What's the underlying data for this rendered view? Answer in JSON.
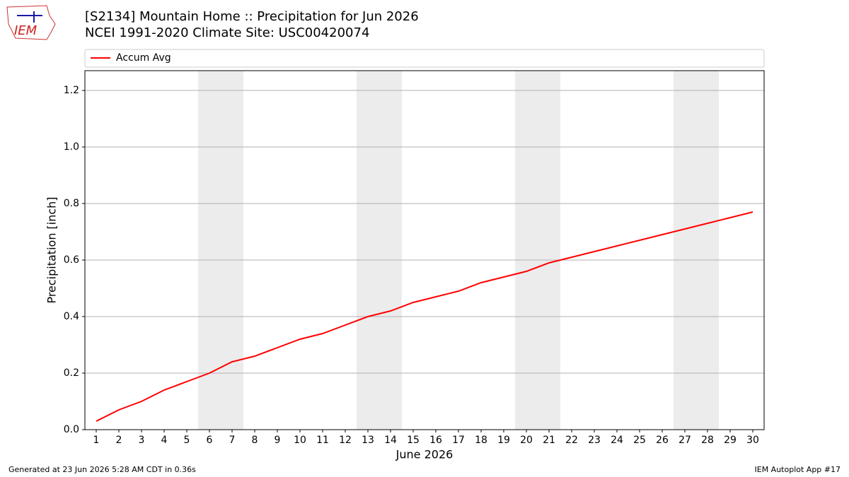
{
  "logo": "IEM",
  "chart_data": {
    "type": "line",
    "title": "[S2134] Mountain Home :: Precipitation for Jun 2026",
    "subtitle": "NCEI 1991-2020 Climate Site: USC00420074",
    "x_label": "June 2026",
    "y_label": "Precipitation [inch]",
    "x": [
      1,
      2,
      3,
      4,
      5,
      6,
      7,
      8,
      9,
      10,
      11,
      12,
      13,
      14,
      15,
      16,
      17,
      18,
      19,
      20,
      21,
      22,
      23,
      24,
      25,
      26,
      27,
      28,
      29,
      30
    ],
    "series": [
      {
        "name": "Accum Avg",
        "color": "#ff0000",
        "values": [
          0.03,
          0.07,
          0.1,
          0.14,
          0.17,
          0.2,
          0.24,
          0.26,
          0.29,
          0.32,
          0.34,
          0.37,
          0.4,
          0.42,
          0.45,
          0.47,
          0.49,
          0.52,
          0.54,
          0.56,
          0.59,
          0.61,
          0.63,
          0.65,
          0.67,
          0.69,
          0.71,
          0.73,
          0.75,
          0.77
        ]
      }
    ],
    "shaded_x_ranges": [
      [
        5.5,
        7.5
      ],
      [
        12.5,
        14.5
      ],
      [
        19.5,
        21.5
      ],
      [
        26.5,
        28.5
      ]
    ],
    "shade_color": "#ececec",
    "xlim": [
      0.5,
      30.5
    ],
    "xticks": [
      1,
      2,
      3,
      4,
      5,
      6,
      7,
      8,
      9,
      10,
      11,
      12,
      13,
      14,
      15,
      16,
      17,
      18,
      19,
      20,
      21,
      22,
      23,
      24,
      25,
      26,
      27,
      28,
      29,
      30
    ],
    "ylim": [
      0,
      1.27
    ],
    "yticks": [
      {
        "value": 0,
        "label": "0.0"
      },
      0.2,
      0.4,
      0.6,
      0.8,
      {
        "value": 1,
        "label": "1.0"
      },
      1.2
    ],
    "grid": "y",
    "legend": "top",
    "footer_left": "Generated at 23 Jun 2026 5:28 AM CDT in 0.36s",
    "footer_right": "IEM Autoplot App #17"
  }
}
